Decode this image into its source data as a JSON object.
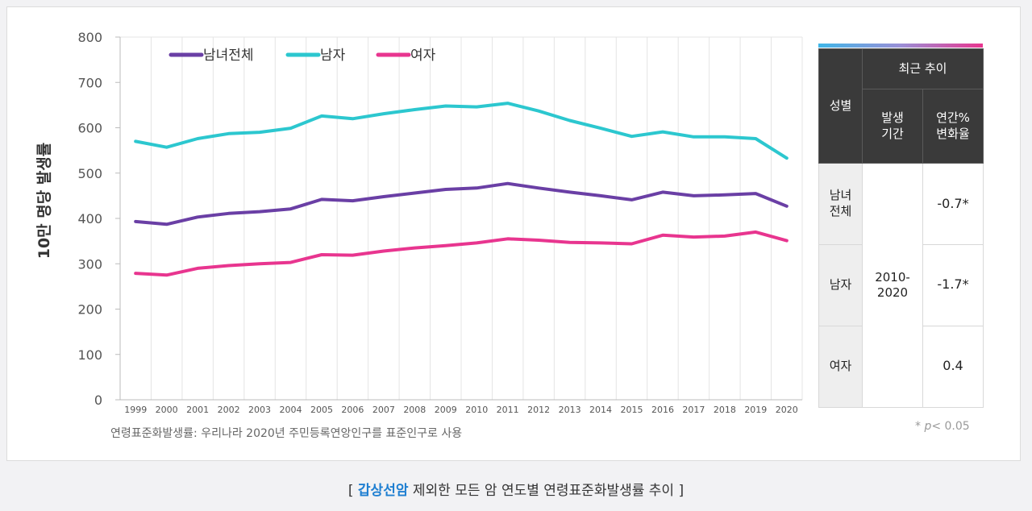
{
  "chart_data": {
    "type": "line",
    "title": "",
    "xlabel": "",
    "ylabel": "10만 명당 발생률",
    "ylim": [
      0,
      800
    ],
    "yticks": [
      0,
      100,
      200,
      300,
      400,
      500,
      600,
      700,
      800
    ],
    "x": [
      "1999",
      "2000",
      "2001",
      "2002",
      "2003",
      "2004",
      "2005",
      "2006",
      "2007",
      "2008",
      "2009",
      "2010",
      "2011",
      "2012",
      "2013",
      "2014",
      "2015",
      "2016",
      "2017",
      "2018",
      "2019",
      "2020"
    ],
    "series": [
      {
        "name": "남녀전체",
        "color": "#6a3fa5",
        "values": [
          393,
          387,
          403,
          411,
          415,
          421,
          442,
          439,
          448,
          456,
          464,
          467,
          477,
          467,
          458,
          450,
          441,
          458,
          450,
          452,
          455,
          427
        ]
      },
      {
        "name": "남자",
        "color": "#2cc7cf",
        "values": [
          570,
          557,
          576,
          587,
          590,
          599,
          626,
          620,
          631,
          640,
          648,
          646,
          654,
          637,
          616,
          599,
          581,
          591,
          580,
          580,
          576,
          533
        ]
      },
      {
        "name": "여자",
        "color": "#e8358f",
        "values": [
          279,
          275,
          290,
          296,
          300,
          303,
          320,
          319,
          328,
          335,
          340,
          346,
          355,
          352,
          347,
          346,
          344,
          363,
          359,
          361,
          370,
          351
        ]
      }
    ],
    "grid": "vertical",
    "legend": "top-left",
    "footnote": "연령표준화발생률: 우리나라 2020년 주민등록연앙인구를 표준인구로 사용"
  },
  "table": {
    "header_gender": "성별",
    "header_recent": "최근 추이",
    "header_period": "발생\n기간",
    "header_change": "연간%\n변화율",
    "rows": [
      {
        "label": "남녀\n전체",
        "value": "-0.7*"
      },
      {
        "label": "남자",
        "value": "-1.7*"
      },
      {
        "label": "여자",
        "value": "0.4"
      }
    ],
    "period": "2010-\n2020",
    "gradient_colors": [
      "#3fb6e8",
      "#9a8fd6",
      "#e8358f"
    ]
  },
  "p_note": {
    "prefix": "* ",
    "p": "p",
    "suffix": "< 0.05"
  },
  "caption": {
    "open": "[ ",
    "highlight": "갑상선암",
    "rest": " 제외한 모든 암 연도별 연령표준화발생률 추이 ]"
  }
}
